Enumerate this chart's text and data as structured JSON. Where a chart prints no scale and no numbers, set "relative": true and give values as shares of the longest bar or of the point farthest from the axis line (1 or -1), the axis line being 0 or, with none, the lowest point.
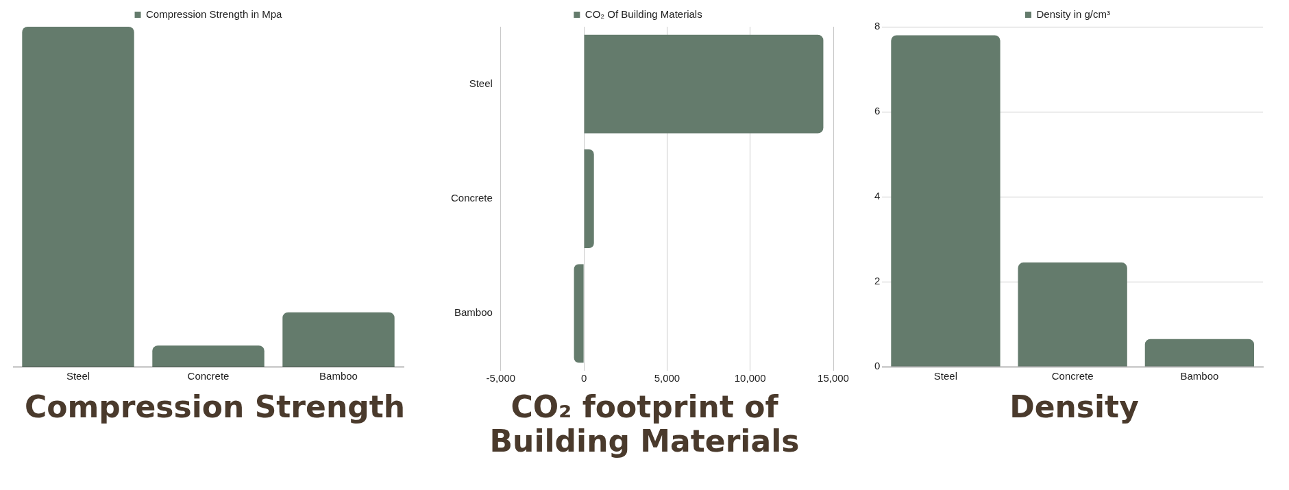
{
  "chart_data": [
    {
      "type": "bar",
      "title": "Compression Strength",
      "categories": [
        "Steel",
        "Concrete",
        "Bamboo"
      ],
      "series": [
        {
          "name": "Compression Strength in Mpa",
          "color": "#647b6c",
          "values": [
            1,
            0.062,
            0.16
          ]
        }
      ],
      "relative": true,
      "legend": "top"
    },
    {
      "type": "bar",
      "title": "CO₂ footprint of Building Materials",
      "orientation": "horizontal",
      "categories": [
        "Steel",
        "Concrete",
        "Bamboo"
      ],
      "series": [
        {
          "name": "CO₂ Of Building Materials",
          "color": "#647b6c",
          "values": [
            14400,
            600,
            -600
          ]
        }
      ],
      "xlim": [
        -5000,
        15000
      ],
      "xticks": [
        {
          "value": -5000,
          "label": "-5,000"
        },
        0,
        {
          "value": 5000,
          "label": "5,000"
        },
        {
          "value": 10000,
          "label": "10,000"
        },
        {
          "value": 15000,
          "label": "15,000"
        }
      ],
      "grid": "x",
      "legend": "top"
    },
    {
      "type": "bar",
      "title": "Density",
      "categories": [
        "Steel",
        "Concrete",
        "Bamboo"
      ],
      "series": [
        {
          "name": "Density in g/cm³",
          "color": "#647b6c",
          "values": [
            7.8,
            2.45,
            0.65
          ]
        }
      ],
      "ylim": [
        0,
        8
      ],
      "yticks": [
        0,
        2,
        4,
        6,
        8
      ],
      "grid": "y",
      "legend": "top"
    }
  ]
}
